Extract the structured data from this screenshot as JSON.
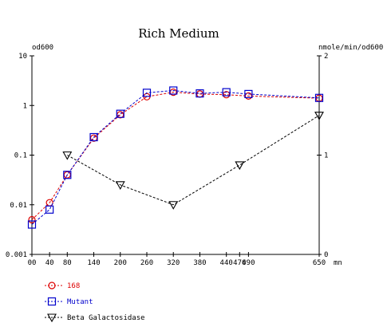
{
  "chart_data": {
    "type": "line",
    "title": "Rich Medium",
    "left_axis": {
      "label": "od600",
      "scale": "log",
      "range": [
        0.001,
        10
      ],
      "ticks": [
        {
          "value": 10,
          "label": "10"
        },
        {
          "value": 1,
          "label": "1"
        },
        {
          "value": 0.1,
          "label": "0.1"
        },
        {
          "value": 0.01,
          "label": "0.01"
        },
        {
          "value": 0.001,
          "label": "0.001"
        }
      ]
    },
    "right_axis": {
      "label": "nmole/min/od600",
      "scale": "linear",
      "range": [
        0,
        2
      ],
      "ticks": [
        {
          "value": 2,
          "label": "2"
        },
        {
          "value": 1,
          "label": "1"
        },
        {
          "value": 0,
          "label": "0"
        }
      ]
    },
    "x_axis": {
      "unit": "mn",
      "range": [
        0,
        650
      ],
      "ticks": [
        {
          "value": 0,
          "label": "00"
        },
        {
          "value": 40,
          "label": "40"
        },
        {
          "value": 80,
          "label": "80"
        },
        {
          "value": 140,
          "label": "140"
        },
        {
          "value": 200,
          "label": "200"
        },
        {
          "value": 260,
          "label": "260"
        },
        {
          "value": 320,
          "label": "320"
        },
        {
          "value": 380,
          "label": "380"
        },
        {
          "value": 440,
          "label": "440"
        },
        {
          "value": 470,
          "label": "470"
        },
        {
          "value": 490,
          "label": "490"
        },
        {
          "value": 650,
          "label": "650"
        }
      ]
    },
    "series": [
      {
        "name": "168",
        "axis": "left",
        "marker": "circle",
        "color": "#dd0000",
        "x": [
          0,
          40,
          80,
          140,
          200,
          260,
          320,
          380,
          440,
          490,
          650
        ],
        "y": [
          0.005,
          0.011,
          0.04,
          0.22,
          0.65,
          1.5,
          1.85,
          1.7,
          1.65,
          1.55,
          1.4
        ]
      },
      {
        "name": "Mutant",
        "axis": "left",
        "marker": "square",
        "color": "#0000cc",
        "x": [
          0,
          40,
          80,
          140,
          200,
          260,
          320,
          380,
          440,
          490,
          650
        ],
        "y": [
          0.004,
          0.008,
          0.04,
          0.23,
          0.68,
          1.8,
          2.0,
          1.75,
          1.85,
          1.7,
          1.42
        ]
      },
      {
        "name": "Beta Galactosidase",
        "axis": "right",
        "marker": "triangle-down",
        "color": "#000000",
        "x": [
          80,
          200,
          320,
          470,
          650
        ],
        "y": [
          1.0,
          0.7,
          0.5,
          0.9,
          1.4
        ]
      }
    ],
    "legend": {
      "placement": "bottom-left"
    },
    "grid": false
  }
}
